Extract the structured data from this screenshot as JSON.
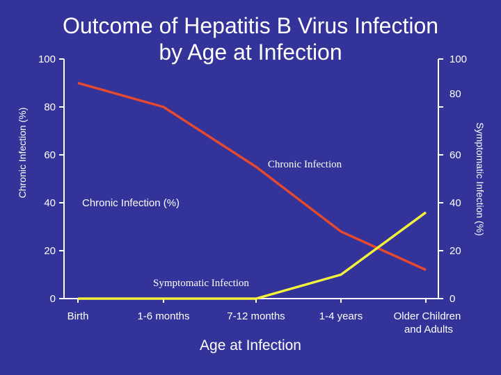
{
  "slide": {
    "title_line1": "Outcome of Hepatitis B Virus Infection",
    "title_line2": "by Age at Infection"
  },
  "colors": {
    "background": "#33339a",
    "axis": "#ffffff",
    "chronic_line": "#e64a2e",
    "symptomatic_line": "#f2f23a"
  },
  "chart_data": {
    "type": "line",
    "title": "Outcome of Hepatitis B Virus Infection by Age at Infection",
    "xlabel": "Age at Infection",
    "ylabel_left": "Chronic Infection (%)",
    "ylabel_right": "Symptomatic Infection (%)",
    "categories": [
      "Birth",
      "1-6 months",
      "7-12 months",
      "1-4 years",
      "Older Children and Adults"
    ],
    "ylim": [
      0,
      100
    ],
    "y_ticks_left": [
      "0",
      "20",
      "40",
      "60",
      "80",
      "100"
    ],
    "y_ticks_right": [
      "0",
      "20",
      "40",
      "60",
      "80",
      "100"
    ],
    "grid": false,
    "series": [
      {
        "key": "chronic",
        "axis": "left",
        "values": [
          90,
          80,
          55,
          28,
          12
        ]
      },
      {
        "key": "symptomatic",
        "axis": "right",
        "values": [
          0,
          0,
          0,
          10,
          36
        ]
      }
    ],
    "annotations": {
      "chronic_infection": "Chronic Infection",
      "chronic_infection_pct": "Chronic Infection (%)",
      "symptomatic_infection": "Symptomatic Infection"
    }
  }
}
